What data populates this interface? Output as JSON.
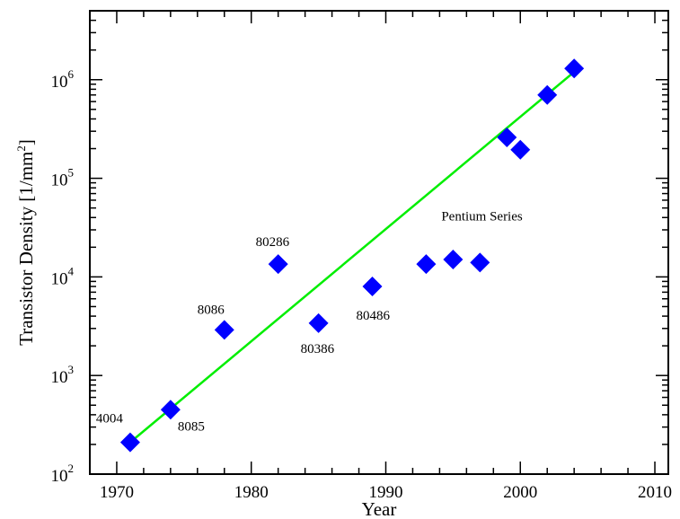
{
  "chart_data": {
    "type": "scatter",
    "title": "",
    "xlabel": "Year",
    "ylabel": "Transistor Density [1/mm^2]",
    "ylabel_parts": {
      "main": "Transistor Density [1/mm",
      "sup": "2",
      "end": "]"
    },
    "xlim": [
      1968,
      2011
    ],
    "ylim": [
      100,
      5000000
    ],
    "yscale": "log",
    "xticks": [
      1970,
      1980,
      1990,
      2000,
      2010
    ],
    "xtick_labels": [
      "1970",
      "1980",
      "1990",
      "2000",
      "2010"
    ],
    "yticks": [
      {
        "value": 100,
        "base": "10",
        "exp": "2"
      },
      {
        "value": 1000,
        "base": "10",
        "exp": "3"
      },
      {
        "value": 10000,
        "base": "10",
        "exp": "4"
      },
      {
        "value": 100000,
        "base": "10",
        "exp": "5"
      },
      {
        "value": 1000000,
        "base": "10",
        "exp": "6"
      }
    ],
    "grid": false,
    "marker_color": "#0000ff",
    "trend_color": "#00ee00",
    "points": [
      {
        "x": 1971,
        "y": 210,
        "label": "4004"
      },
      {
        "x": 1974,
        "y": 450,
        "label": "8085"
      },
      {
        "x": 1978,
        "y": 2900,
        "label": "8086"
      },
      {
        "x": 1982,
        "y": 13500,
        "label": "80286"
      },
      {
        "x": 1985,
        "y": 3400,
        "label": "80386"
      },
      {
        "x": 1989,
        "y": 8000,
        "label": "80486"
      },
      {
        "x": 1993,
        "y": 13500,
        "label": ""
      },
      {
        "x": 1995,
        "y": 15000,
        "label": ""
      },
      {
        "x": 1997,
        "y": 14000,
        "label": ""
      },
      {
        "x": 1999,
        "y": 260000,
        "label": ""
      },
      {
        "x": 2000,
        "y": 195000,
        "label": ""
      },
      {
        "x": 2002,
        "y": 700000,
        "label": ""
      },
      {
        "x": 2004,
        "y": 1300000,
        "label": ""
      }
    ],
    "trend_line": {
      "x": [
        1971,
        2004
      ],
      "y": [
        210,
        1200000
      ]
    },
    "annotations": [
      {
        "text": "4004",
        "x": 1971,
        "y": 210
      },
      {
        "text": "8085",
        "x": 1974,
        "y": 450
      },
      {
        "text": "8086",
        "x": 1978,
        "y": 2900
      },
      {
        "text": "80286",
        "x": 1982,
        "y": 13500
      },
      {
        "text": "80386",
        "x": 1985,
        "y": 3400
      },
      {
        "text": "80486",
        "x": 1989,
        "y": 8000
      },
      {
        "text": "Pentium Series",
        "x": 1997,
        "y": 14000
      }
    ]
  }
}
